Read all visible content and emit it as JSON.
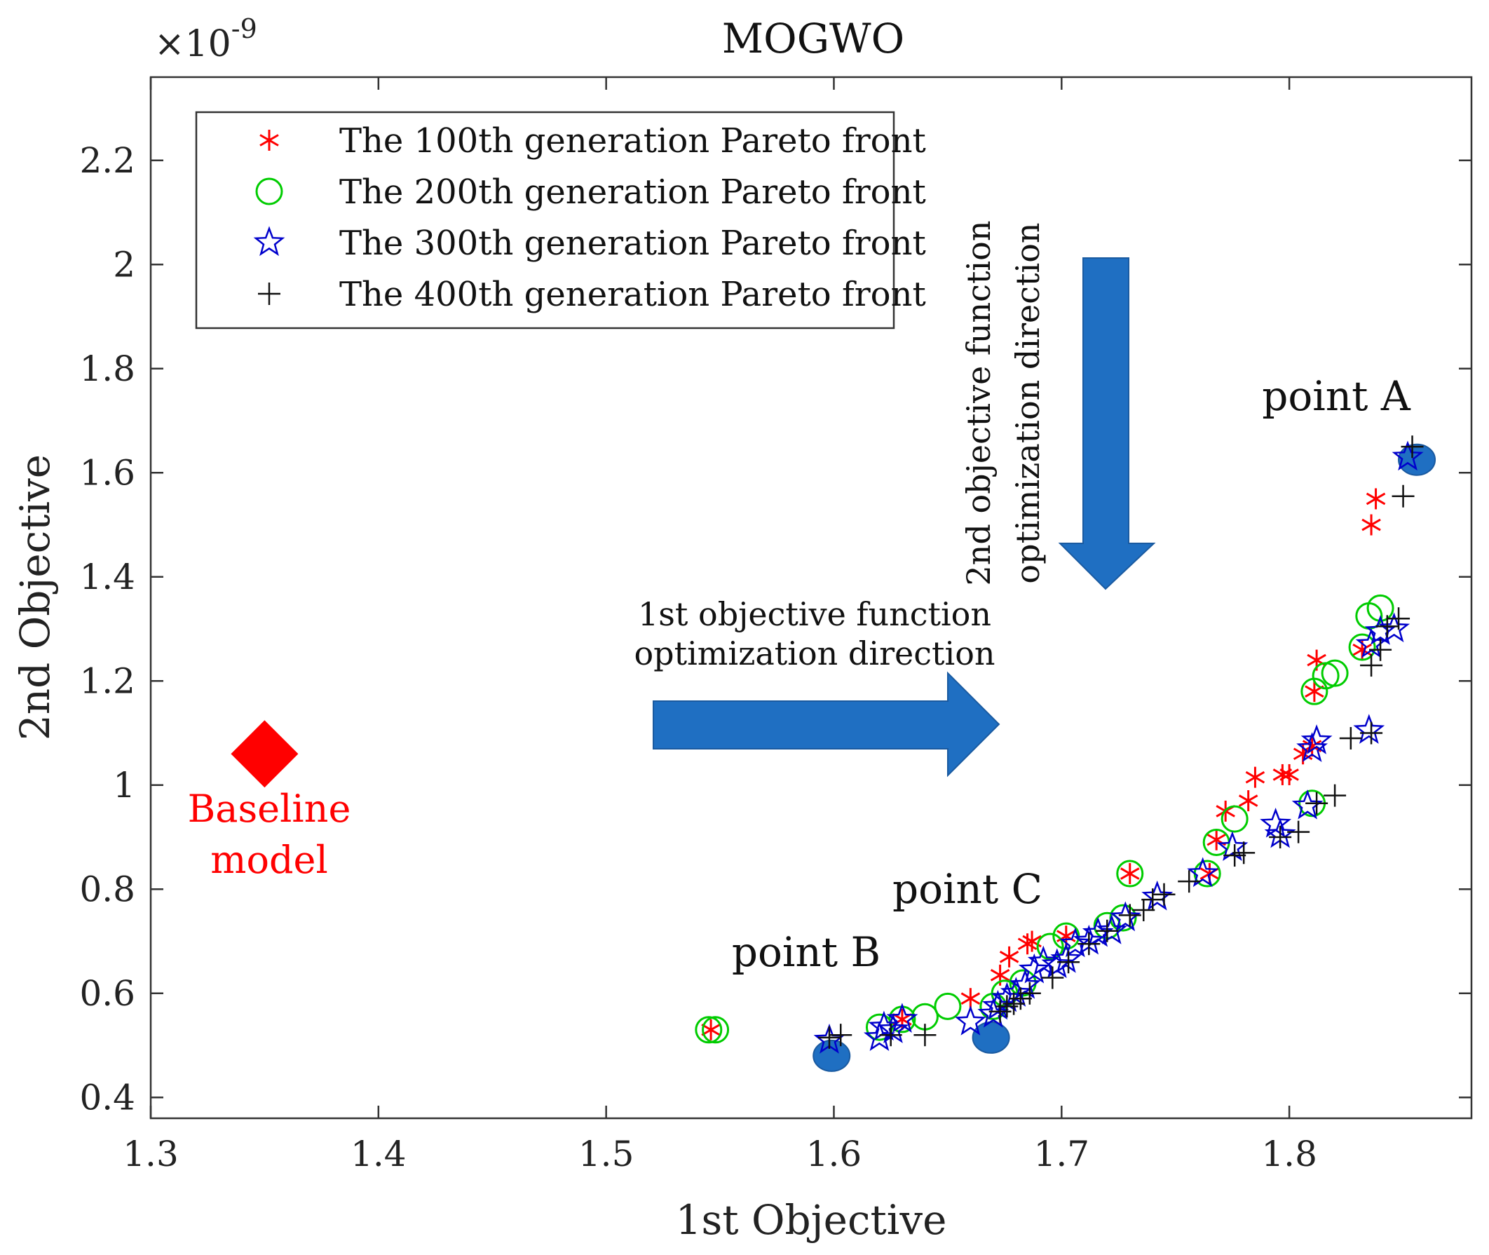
{
  "chart_data": {
    "type": "scatter",
    "title": "MOGWO",
    "xlabel": "1st Objective",
    "ylabel": "2nd Objective",
    "y_exponent_base": "×10",
    "y_exponent_power": "-9",
    "xlim": [
      1.3,
      1.88
    ],
    "ylim": [
      0.36,
      2.36
    ],
    "xticks": [
      1.3,
      1.4,
      1.5,
      1.6,
      1.7,
      1.8
    ],
    "xtick_labels": [
      "1.3",
      "1.4",
      "1.5",
      "1.6",
      "1.7",
      "1.8"
    ],
    "yticks": [
      0.4,
      0.6,
      0.8,
      1.0,
      1.2,
      1.4,
      1.6,
      1.8,
      2.0,
      2.2
    ],
    "ytick_labels": [
      "0.4",
      "0.6",
      "0.8",
      "1",
      "1.2",
      "1.4",
      "1.6",
      "1.8",
      "2",
      "2.2"
    ],
    "grid": false,
    "legend_position": "top-left",
    "series": [
      {
        "name": "The 100th generation Pareto front",
        "marker": "asterisk",
        "color": "#ff0000",
        "points": [
          [
            1.546,
            0.53
          ],
          [
            1.63,
            0.55
          ],
          [
            1.66,
            0.59
          ],
          [
            1.673,
            0.635
          ],
          [
            1.677,
            0.67
          ],
          [
            1.685,
            0.695
          ],
          [
            1.687,
            0.7
          ],
          [
            1.702,
            0.71
          ],
          [
            1.73,
            0.83
          ],
          [
            1.765,
            0.83
          ],
          [
            1.768,
            0.895
          ],
          [
            1.772,
            0.95
          ],
          [
            1.782,
            0.97
          ],
          [
            1.785,
            1.015
          ],
          [
            1.797,
            1.02
          ],
          [
            1.8,
            1.02
          ],
          [
            1.806,
            1.06
          ],
          [
            1.81,
            1.075
          ],
          [
            1.811,
            1.18
          ],
          [
            1.812,
            1.24
          ],
          [
            1.832,
            1.26
          ],
          [
            1.836,
            1.5
          ],
          [
            1.838,
            1.55
          ]
        ]
      },
      {
        "name": "The 200th generation Pareto front",
        "marker": "circle",
        "color": "#00cc00",
        "points": [
          [
            1.545,
            0.53
          ],
          [
            1.548,
            0.53
          ],
          [
            1.62,
            0.535
          ],
          [
            1.63,
            0.55
          ],
          [
            1.64,
            0.555
          ],
          [
            1.65,
            0.575
          ],
          [
            1.67,
            0.575
          ],
          [
            1.675,
            0.6
          ],
          [
            1.683,
            0.62
          ],
          [
            1.695,
            0.69
          ],
          [
            1.702,
            0.71
          ],
          [
            1.72,
            0.73
          ],
          [
            1.727,
            0.745
          ],
          [
            1.73,
            0.83
          ],
          [
            1.764,
            0.83
          ],
          [
            1.768,
            0.89
          ],
          [
            1.776,
            0.935
          ],
          [
            1.81,
            0.965
          ],
          [
            1.811,
            1.18
          ],
          [
            1.816,
            1.21
          ],
          [
            1.82,
            1.215
          ],
          [
            1.832,
            1.265
          ],
          [
            1.835,
            1.325
          ],
          [
            1.84,
            1.34
          ]
        ]
      },
      {
        "name": "The 300th generation Pareto front",
        "marker": "star",
        "color": "#0000cc",
        "points": [
          [
            1.598,
            0.51
          ],
          [
            1.62,
            0.515
          ],
          [
            1.622,
            0.535
          ],
          [
            1.626,
            0.53
          ],
          [
            1.63,
            0.55
          ],
          [
            1.66,
            0.545
          ],
          [
            1.67,
            0.56
          ],
          [
            1.672,
            0.575
          ],
          [
            1.676,
            0.59
          ],
          [
            1.68,
            0.6
          ],
          [
            1.684,
            0.615
          ],
          [
            1.688,
            0.645
          ],
          [
            1.692,
            0.66
          ],
          [
            1.698,
            0.655
          ],
          [
            1.702,
            0.665
          ],
          [
            1.706,
            0.695
          ],
          [
            1.712,
            0.7
          ],
          [
            1.716,
            0.715
          ],
          [
            1.722,
            0.72
          ],
          [
            1.728,
            0.745
          ],
          [
            1.742,
            0.785
          ],
          [
            1.762,
            0.83
          ],
          [
            1.775,
            0.88
          ],
          [
            1.794,
            0.925
          ],
          [
            1.796,
            0.905
          ],
          [
            1.808,
            0.96
          ],
          [
            1.81,
            1.07
          ],
          [
            1.812,
            1.085
          ],
          [
            1.835,
            1.105
          ],
          [
            1.836,
            1.27
          ],
          [
            1.84,
            1.295
          ],
          [
            1.846,
            1.3
          ],
          [
            1.852,
            1.63
          ]
        ]
      },
      {
        "name": "The 400th generation Pareto front",
        "marker": "plus",
        "color": "#111111",
        "points": [
          [
            1.598,
            0.515
          ],
          [
            1.603,
            0.52
          ],
          [
            1.625,
            0.52
          ],
          [
            1.64,
            0.52
          ],
          [
            1.673,
            0.565
          ],
          [
            1.676,
            0.575
          ],
          [
            1.679,
            0.58
          ],
          [
            1.682,
            0.59
          ],
          [
            1.686,
            0.6
          ],
          [
            1.696,
            0.63
          ],
          [
            1.703,
            0.66
          ],
          [
            1.712,
            0.695
          ],
          [
            1.72,
            0.72
          ],
          [
            1.73,
            0.75
          ],
          [
            1.736,
            0.76
          ],
          [
            1.74,
            0.78
          ],
          [
            1.745,
            0.79
          ],
          [
            1.756,
            0.815
          ],
          [
            1.776,
            0.865
          ],
          [
            1.78,
            0.87
          ],
          [
            1.796,
            0.9
          ],
          [
            1.804,
            0.91
          ],
          [
            1.812,
            0.965
          ],
          [
            1.82,
            0.98
          ],
          [
            1.827,
            1.09
          ],
          [
            1.836,
            1.1
          ],
          [
            1.836,
            1.23
          ],
          [
            1.84,
            1.26
          ],
          [
            1.843,
            1.305
          ],
          [
            1.848,
            1.32
          ],
          [
            1.85,
            1.555
          ],
          [
            1.854,
            1.65
          ]
        ]
      }
    ],
    "highlight_points": [
      {
        "label": "point A",
        "x": 1.856,
        "y": 1.625
      },
      {
        "label": "point B",
        "x": 1.599,
        "y": 0.48
      },
      {
        "label": "point C",
        "x": 1.669,
        "y": 0.515
      }
    ],
    "baseline": {
      "x": 1.35,
      "y": 1.06,
      "label_line1": "Baseline",
      "label_line2": "model",
      "color": "#ff0000"
    },
    "arrows": {
      "horizontal_label_line1": "1st objective function",
      "horizontal_label_line2": "optimization direction",
      "vertical_label_line1": "2nd objective function",
      "vertical_label_line2": "optimization direction",
      "color": "#1f6fc2"
    }
  }
}
